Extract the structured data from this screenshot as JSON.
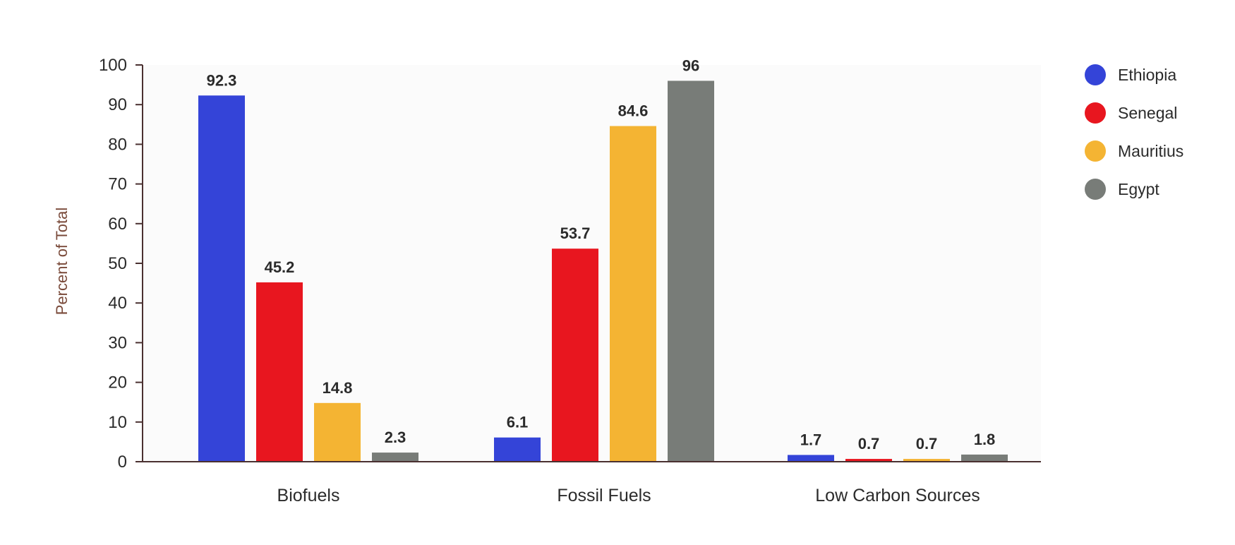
{
  "chart_data": {
    "type": "bar",
    "categories": [
      "Biofuels",
      "Fossil Fuels",
      "Low Carbon Sources"
    ],
    "series": [
      {
        "name": "Ethiopia",
        "color": "#3444d8",
        "values": [
          92.3,
          6.1,
          1.7
        ]
      },
      {
        "name": "Senegal",
        "color": "#e8161f",
        "values": [
          45.2,
          53.7,
          0.7
        ]
      },
      {
        "name": "Mauritius",
        "color": "#f4b433",
        "values": [
          14.8,
          84.6,
          0.7
        ]
      },
      {
        "name": "Egypt",
        "color": "#787c78",
        "values": [
          2.3,
          96,
          1.8
        ]
      }
    ],
    "value_labels": [
      [
        "92.3",
        "6.1",
        "1.7"
      ],
      [
        "45.2",
        "53.7",
        "0.7"
      ],
      [
        "14.8",
        "84.6",
        "0.7"
      ],
      [
        "2.3",
        "96",
        "1.8"
      ]
    ],
    "ylabel": "Percent of Total",
    "ylim": [
      0,
      100
    ],
    "yticks": [
      "0",
      "10",
      "20",
      "30",
      "40",
      "50",
      "60",
      "70",
      "80",
      "90",
      "100"
    ],
    "grid": false,
    "legend": "right",
    "plot_background": "#fbfbfb"
  }
}
